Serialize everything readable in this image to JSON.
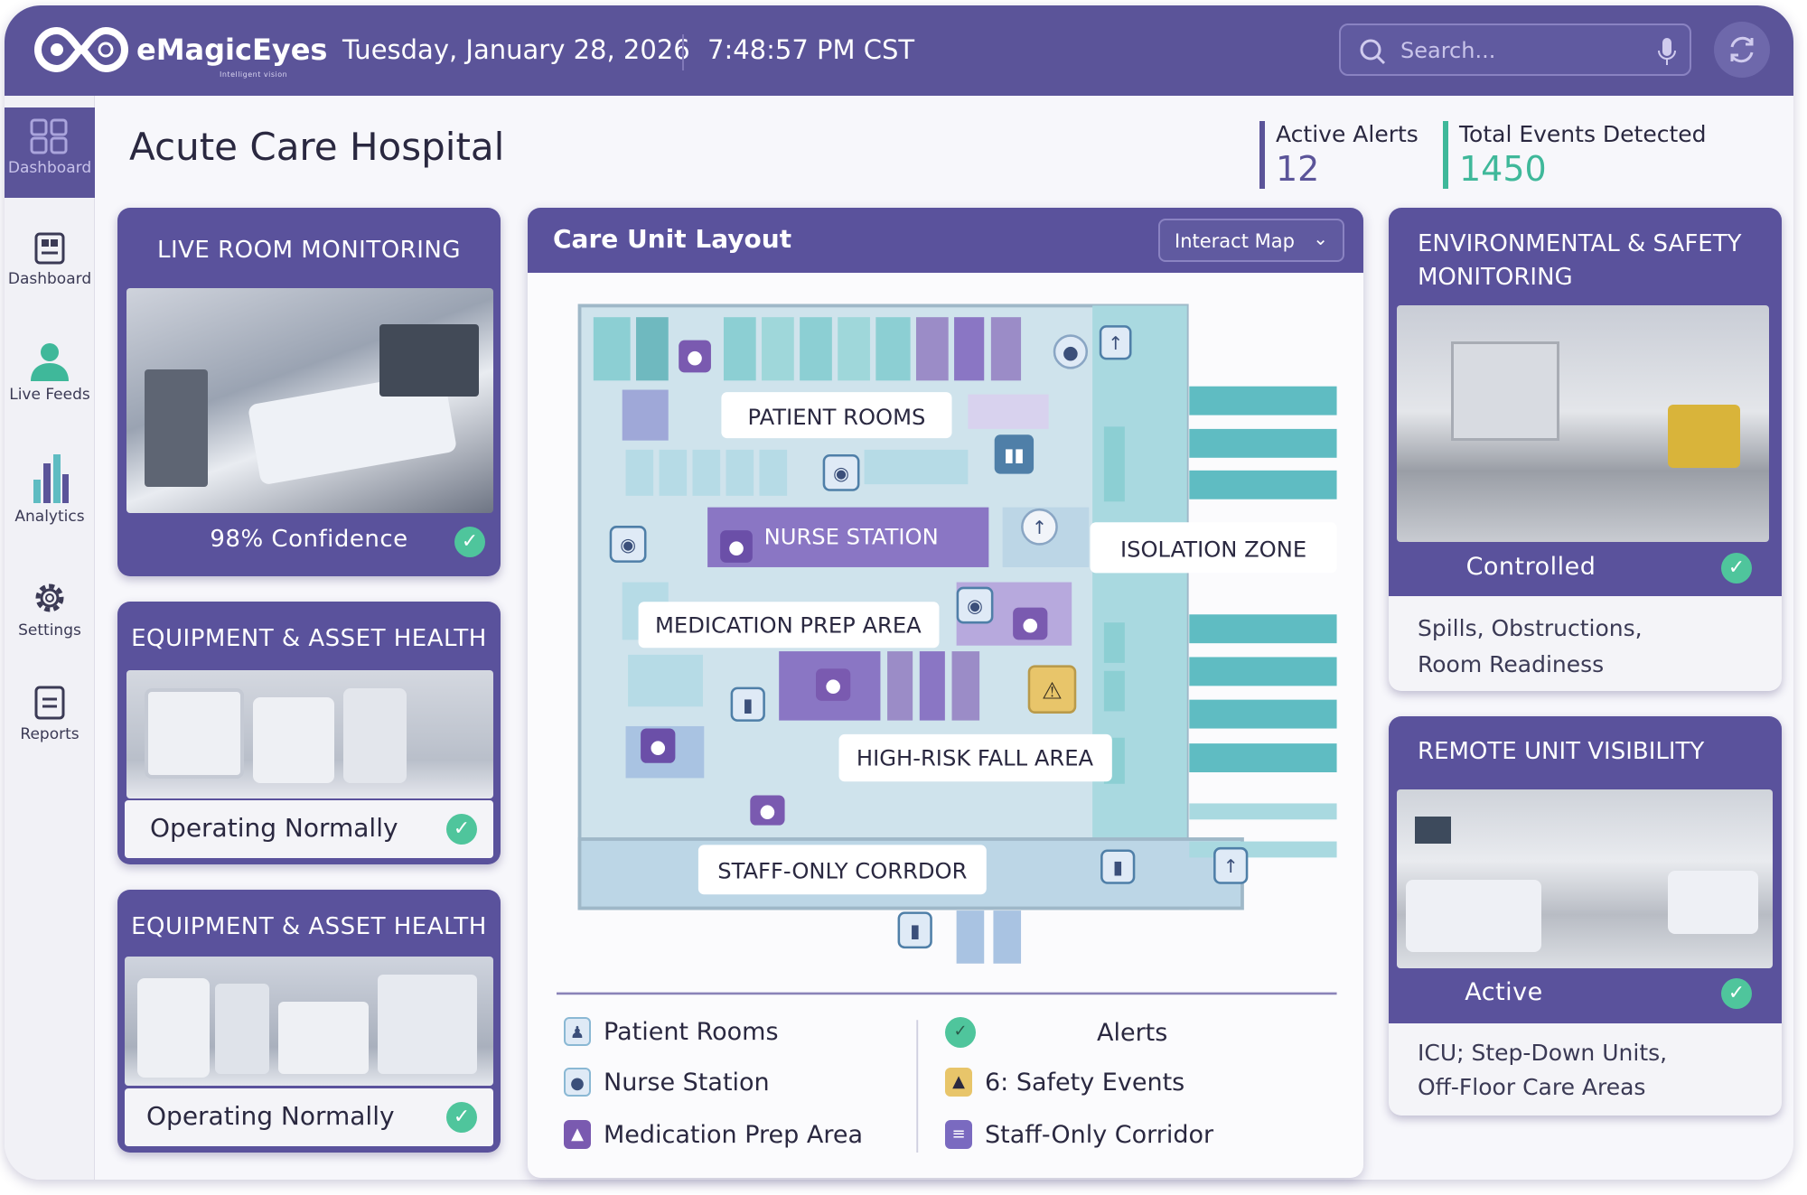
{
  "header": {
    "brand": "eMagicEyes",
    "tagline": "Intelligent vision",
    "date": "Tuesday, January 28, 2026",
    "time": "7:48:57 PM CST",
    "search_placeholder": "Search...",
    "icons": {
      "logo": "infinity-eye-logo",
      "search": "search-icon",
      "mic": "microphone-icon",
      "refresh": "refresh-icon"
    }
  },
  "sidebar": {
    "items": [
      {
        "label": "Dashboard",
        "icon": "grid-icon",
        "active": true
      },
      {
        "label": "Dashboard",
        "icon": "dashboard-icon"
      },
      {
        "label": "Live Feeds",
        "icon": "person-icon"
      },
      {
        "label": "Analytics",
        "icon": "bar-chart-icon"
      },
      {
        "label": "Settings",
        "icon": "gear-icon"
      },
      {
        "label": "Reports",
        "icon": "report-icon"
      }
    ]
  },
  "page": {
    "title": "Acute Care Hospital"
  },
  "kpis": [
    {
      "label": "Active Alerts",
      "value": "12",
      "color": "#5b5499"
    },
    {
      "label": "Total Events Detected",
      "value": "1450",
      "color": "#3fb89a"
    }
  ],
  "left_cards": [
    {
      "title": "LIVE ROOM MONITORING",
      "status": "98% Confidence"
    },
    {
      "title": "EQUIPMENT & ASSET HEALTH",
      "status": "Operating Normally"
    },
    {
      "title": "EQUIPMENT & ASSET HEALTH",
      "status": "Operating Normally"
    }
  ],
  "map": {
    "title": "Care Unit Layout",
    "dropdown": "Interact Map",
    "labels": {
      "patient_rooms": "PATIENT ROOMS",
      "nurse_station": "NURSE STATION",
      "isolation_zone": "ISOLATION ZONE",
      "medication": "MEDICATION PREP AREA",
      "fall_area": "HIGH-RISK FALL AREA",
      "corridor": "STAFF-ONLY CORRDOR"
    }
  },
  "legend": {
    "left": [
      "Patient Rooms",
      "Nurse Station",
      "Medication Prep Area"
    ],
    "right": [
      "Alerts",
      "6: Safety Events",
      "Staff-Only Corridor"
    ]
  },
  "right_cards": [
    {
      "title_lines": [
        "ENVIRONMENTAL & SAFETY",
        "MONITORING"
      ],
      "status": "Controlled",
      "desc_lines": [
        "Spills, Obstructions,",
        "Room Readiness"
      ]
    },
    {
      "title_lines": [
        "REMOTE UNIT VISIBILITY"
      ],
      "status": "Active",
      "desc_lines": [
        "ICU; Step-Down Units,",
        "Off-Floor Care Areas"
      ]
    }
  ],
  "colors": {
    "primary": "#5a529c",
    "teal": "#5fbcc2",
    "success": "#4fc59c",
    "warning": "#e8c56a"
  }
}
